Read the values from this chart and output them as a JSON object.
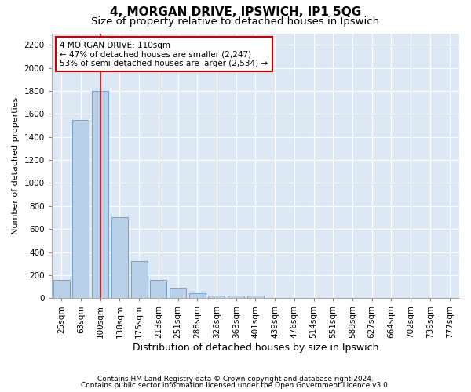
{
  "title": "4, MORGAN DRIVE, IPSWICH, IP1 5QG",
  "subtitle": "Size of property relative to detached houses in Ipswich",
  "xlabel": "Distribution of detached houses by size in Ipswich",
  "ylabel": "Number of detached properties",
  "categories": [
    "25sqm",
    "63sqm",
    "100sqm",
    "138sqm",
    "175sqm",
    "213sqm",
    "251sqm",
    "288sqm",
    "326sqm",
    "363sqm",
    "401sqm",
    "439sqm",
    "476sqm",
    "514sqm",
    "551sqm",
    "589sqm",
    "627sqm",
    "664sqm",
    "702sqm",
    "739sqm",
    "777sqm"
  ],
  "values": [
    160,
    1550,
    1800,
    700,
    320,
    160,
    90,
    45,
    25,
    20,
    20,
    5,
    5,
    3,
    2,
    2,
    1,
    1,
    1,
    0,
    0
  ],
  "bar_color": "#b8d0e8",
  "bar_edge_color": "#6699cc",
  "annotation_text_line1": "4 MORGAN DRIVE: 110sqm",
  "annotation_text_line2": "← 47% of detached houses are smaller (2,247)",
  "annotation_text_line3": "53% of semi-detached houses are larger (2,534) →",
  "annotation_box_color": "#ffffff",
  "annotation_box_edge_color": "#cc0000",
  "redline_x": 2,
  "ylim_max": 2300,
  "yticks": [
    0,
    200,
    400,
    600,
    800,
    1000,
    1200,
    1400,
    1600,
    1800,
    2000,
    2200
  ],
  "plot_bg_color": "#dde8f5",
  "footer_line1": "Contains HM Land Registry data © Crown copyright and database right 2024.",
  "footer_line2": "Contains public sector information licensed under the Open Government Licence v3.0.",
  "title_fontsize": 11,
  "subtitle_fontsize": 9.5,
  "xlabel_fontsize": 9,
  "ylabel_fontsize": 8,
  "tick_fontsize": 7.5,
  "annotation_fontsize": 7.5,
  "footer_fontsize": 6.5
}
